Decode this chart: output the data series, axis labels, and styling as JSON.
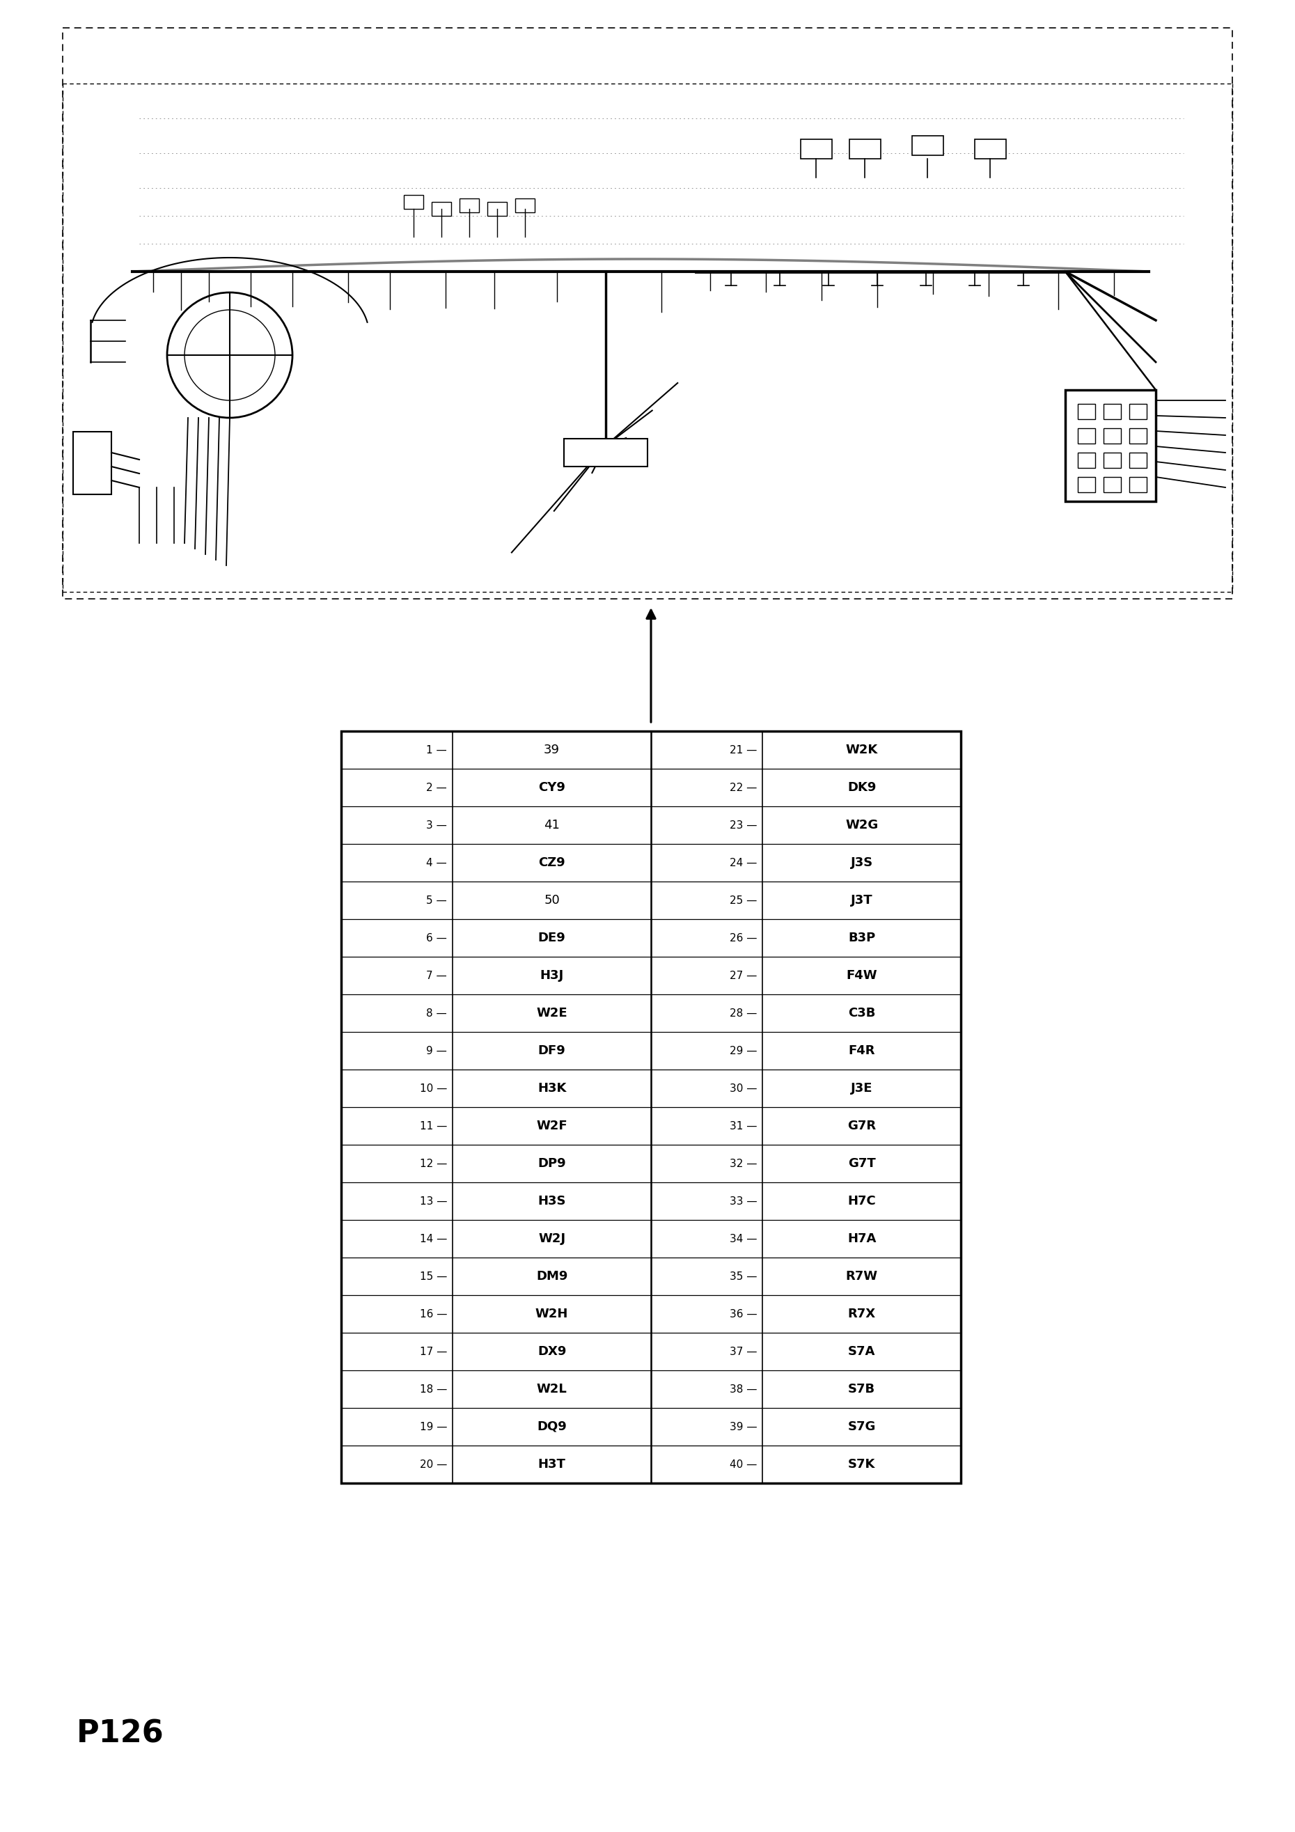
{
  "page_label": "P126",
  "background_color": "#ffffff",
  "left_col": [
    {
      "num": 1,
      "label": "39",
      "bold": false
    },
    {
      "num": 2,
      "label": "CY9",
      "bold": true
    },
    {
      "num": 3,
      "label": "41",
      "bold": false
    },
    {
      "num": 4,
      "label": "CZ9",
      "bold": true
    },
    {
      "num": 5,
      "label": "50",
      "bold": false
    },
    {
      "num": 6,
      "label": "DE9",
      "bold": true
    },
    {
      "num": 7,
      "label": "H3J",
      "bold": true
    },
    {
      "num": 8,
      "label": "W2E",
      "bold": true
    },
    {
      "num": 9,
      "label": "DF9",
      "bold": true
    },
    {
      "num": 10,
      "label": "H3K",
      "bold": true
    },
    {
      "num": 11,
      "label": "W2F",
      "bold": true
    },
    {
      "num": 12,
      "label": "DP9",
      "bold": true
    },
    {
      "num": 13,
      "label": "H3S",
      "bold": true
    },
    {
      "num": 14,
      "label": "W2J",
      "bold": true
    },
    {
      "num": 15,
      "label": "DM9",
      "bold": true
    },
    {
      "num": 16,
      "label": "W2H",
      "bold": true
    },
    {
      "num": 17,
      "label": "DX9",
      "bold": true
    },
    {
      "num": 18,
      "label": "W2L",
      "bold": true
    },
    {
      "num": 19,
      "label": "DQ9",
      "bold": true
    },
    {
      "num": 20,
      "label": "H3T",
      "bold": true
    }
  ],
  "right_col": [
    {
      "num": 21,
      "label": "W2K",
      "bold": true
    },
    {
      "num": 22,
      "label": "DK9",
      "bold": true
    },
    {
      "num": 23,
      "label": "W2G",
      "bold": true
    },
    {
      "num": 24,
      "label": "J3S",
      "bold": true
    },
    {
      "num": 25,
      "label": "J3T",
      "bold": true
    },
    {
      "num": 26,
      "label": "B3P",
      "bold": true
    },
    {
      "num": 27,
      "label": "F4W",
      "bold": true
    },
    {
      "num": 28,
      "label": "C3B",
      "bold": true
    },
    {
      "num": 29,
      "label": "F4R",
      "bold": true
    },
    {
      "num": 30,
      "label": "J3E",
      "bold": true
    },
    {
      "num": 31,
      "label": "G7R",
      "bold": true
    },
    {
      "num": 32,
      "label": "G7T",
      "bold": true
    },
    {
      "num": 33,
      "label": "H7C",
      "bold": true
    },
    {
      "num": 34,
      "label": "H7A",
      "bold": true
    },
    {
      "num": 35,
      "label": "R7W",
      "bold": true
    },
    {
      "num": 36,
      "label": "R7X",
      "bold": true
    },
    {
      "num": 37,
      "label": "S7A",
      "bold": true
    },
    {
      "num": 38,
      "label": "S7B",
      "bold": true
    },
    {
      "num": 39,
      "label": "S7G",
      "bold": true
    },
    {
      "num": 40,
      "label": "S7K",
      "bold": true
    }
  ],
  "font_size_table": 13,
  "font_size_num": 11,
  "font_size_page": 32
}
